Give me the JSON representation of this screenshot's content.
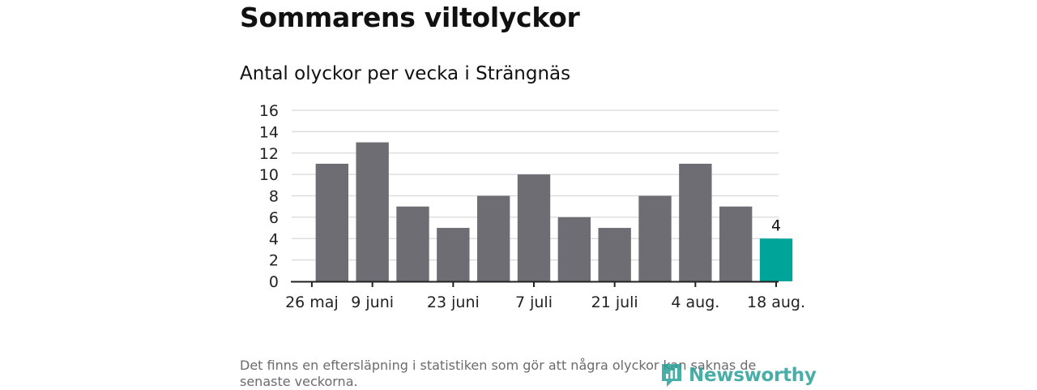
{
  "header": {
    "title": "Sommarens viltolyckor",
    "subtitle": "Antal olyckor per vecka i Strängnäs"
  },
  "footer": {
    "note": "Det finns en eftersläpning i statistiken som gör att några olyckor kan saknas de senaste veckorna.",
    "brand": "Newsworthy"
  },
  "colors": {
    "bar": "#6e6d73",
    "highlight": "#00a499",
    "grid": "#d9d9d9",
    "axis": "#222222",
    "brand": "#2aa198"
  },
  "chart_data": {
    "type": "bar",
    "values": [
      11,
      13,
      7,
      5,
      8,
      10,
      6,
      5,
      8,
      11,
      7,
      4
    ],
    "x_tick_labels": [
      "26 maj",
      "9 juni",
      "23 juni",
      "7 juli",
      "21 juli",
      "4 aug.",
      "18 aug."
    ],
    "x_tick_label_positions": [
      -0.5,
      1,
      3,
      5,
      7,
      9,
      11
    ],
    "ylim": [
      0,
      16
    ],
    "yticks": [
      0,
      2,
      4,
      6,
      8,
      10,
      12,
      14,
      16
    ],
    "highlight_index": 11,
    "data_labels": [
      {
        "index": 11,
        "text": "4"
      }
    ],
    "grid": true
  }
}
